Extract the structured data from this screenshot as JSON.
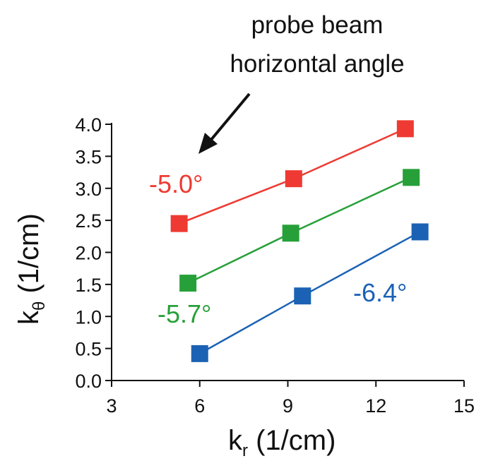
{
  "chart_data": {
    "type": "scatter",
    "xlabel_main": "k",
    "xlabel_sub": "r",
    "xlabel_unit": " (1/cm)",
    "ylabel_main": "k",
    "ylabel_sub": "θ",
    "ylabel_unit": " (1/cm)",
    "xlim": [
      3,
      15
    ],
    "ylim": [
      0,
      4
    ],
    "xticks": [
      "3",
      "6",
      "9",
      "12",
      "15"
    ],
    "yticks": [
      "0.0",
      "0.5",
      "1.0",
      "1.5",
      "2.0",
      "2.5",
      "3.0",
      "3.5",
      "4.0"
    ],
    "annotation": {
      "lines": [
        "probe beam",
        "horizontal angle"
      ]
    },
    "series": [
      {
        "name": "-5.0°",
        "color": "#ee3a32",
        "x": [
          5.3,
          9.2,
          13.0
        ],
        "y": [
          2.45,
          3.15,
          3.93
        ]
      },
      {
        "name": "-5.7°",
        "color": "#27a039",
        "x": [
          5.6,
          9.1,
          13.2
        ],
        "y": [
          1.52,
          2.3,
          3.17
        ]
      },
      {
        "name": "-6.4°",
        "color": "#1b62b4",
        "x": [
          6.0,
          9.5,
          13.5
        ],
        "y": [
          0.42,
          1.32,
          2.32
        ]
      }
    ]
  }
}
